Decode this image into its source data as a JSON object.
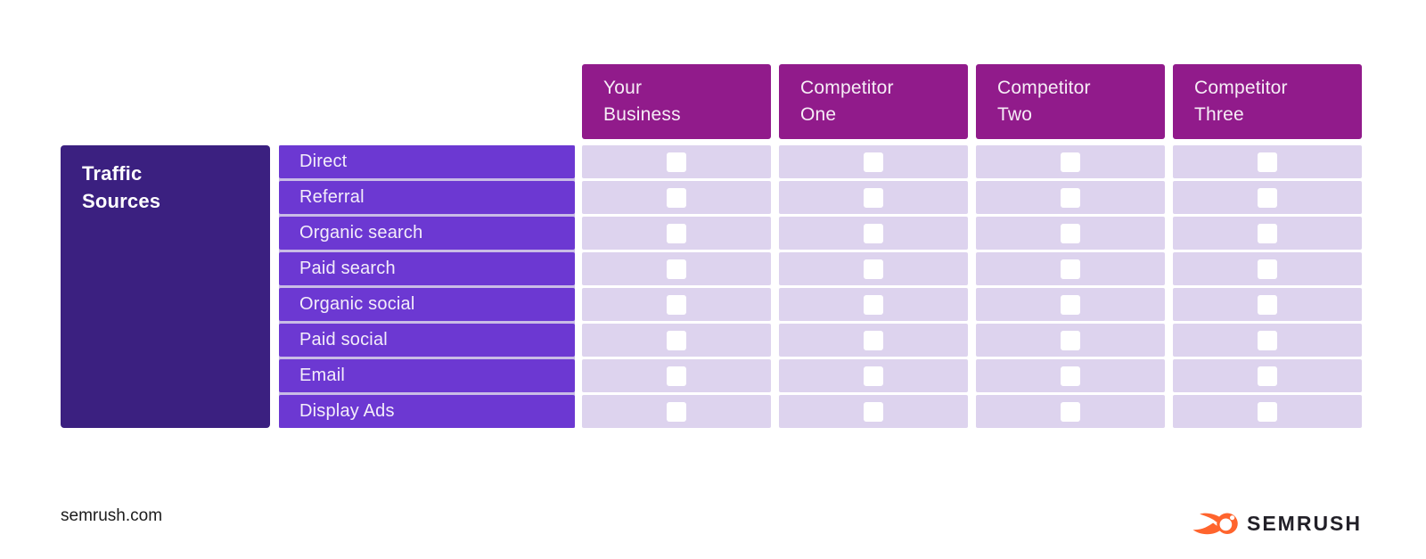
{
  "table": {
    "row_group_title": "Traffic\nSources",
    "row_labels": [
      "Direct",
      "Referral",
      "Organic search",
      "Paid search",
      "Organic social",
      "Paid social",
      "Email",
      "Display Ads"
    ],
    "columns": [
      "Your\nBusiness",
      "Competitor\nOne",
      "Competitor\nTwo",
      "Competitor\nThree"
    ],
    "checkboxes": {
      "rows": 8,
      "cols": 4,
      "all_checked": false
    }
  },
  "footer": {
    "website": "semrush.com",
    "brand": "SEMRUSH",
    "logo_icon": "semrush-fireball-icon"
  },
  "colors": {
    "header_bg": "#911b8b",
    "row_label_bg": "#6c38d2",
    "row_group_bg": "#3b2080",
    "cell_bg": "#ddd3ee",
    "checkbox_bg": "#ffffff",
    "row_gap_line": "#c9bce6",
    "brand_orange": "#ff642d",
    "brand_text": "#222028",
    "footer_text": "#1c1c1c"
  }
}
